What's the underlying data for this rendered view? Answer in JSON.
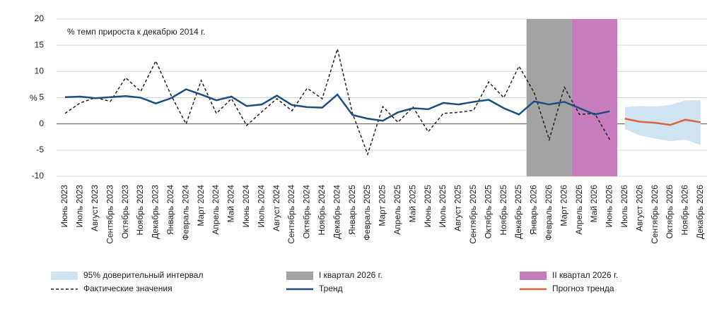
{
  "chart_data": {
    "type": "line",
    "title": "% темп прироста к декабрю 2014 г.",
    "y_label": "%",
    "categories": [
      "Июнь 2023",
      "Июль 2023",
      "Август 2023",
      "Сентябрь 2023",
      "Октябрь 2023",
      "Ноябрь 2023",
      "Декабрь 2023",
      "Январь 2024",
      "Февраль 2024",
      "Март 2024",
      "Апрель 2024",
      "Май 2024",
      "Июнь 2024",
      "Июль 2024",
      "Август 2024",
      "Сентябрь 2024",
      "Октябрь 2024",
      "Ноябрь 2024",
      "Декабрь 2024",
      "Январь 2025",
      "Февраль 2025",
      "Март 2025",
      "Апрель 2025",
      "Май 2025",
      "Июнь 2025",
      "Июль 2025",
      "Август 2025",
      "Сентябрь 2025",
      "Октябрь 2025",
      "Ноябрь 2025",
      "Декабрь 2025",
      "Январь 2026",
      "Февраль 2026",
      "Март 2026",
      "Апрель 2026",
      "Май 2026",
      "Июнь 2026",
      "Июль 2026",
      "Август 2026",
      "Сентябрь 2026",
      "Октябрь 2026",
      "Ноябрь 2026",
      "Декабрь 2026"
    ],
    "series": [
      {
        "name": "Фактические значения",
        "color": "#222222",
        "dashed": true,
        "values": [
          2,
          4,
          5,
          4.3,
          8.8,
          6.2,
          12,
          5.5,
          0,
          8.3,
          2,
          4.8,
          -0.3,
          2.3,
          4.8,
          2.5,
          6.8,
          4.8,
          14.3,
          2,
          -5.8,
          3.3,
          0.3,
          3.2,
          -1.5,
          2,
          2.2,
          2.6,
          8,
          5,
          11,
          6,
          -3,
          7,
          1.8,
          2,
          -3,
          null,
          null,
          null,
          null,
          null,
          null
        ]
      },
      {
        "name": "Тренд",
        "color": "#1b4f82",
        "dashed": false,
        "values": [
          5.1,
          5.2,
          4.9,
          5.1,
          5.3,
          5,
          3.9,
          4.9,
          6.6,
          5.6,
          4.5,
          5.2,
          3.4,
          3.7,
          5.4,
          3.6,
          3.2,
          3.1,
          5.6,
          1.7,
          1,
          0.6,
          2.2,
          3,
          2.8,
          4,
          3.7,
          4.2,
          4.6,
          3,
          1.8,
          4.3,
          3.7,
          4.2,
          3,
          1.8,
          2.4,
          null,
          null,
          null,
          null,
          null,
          null
        ]
      },
      {
        "name": "Прогноз тренда",
        "color": "#e0623a",
        "dashed": false,
        "values": [
          null,
          null,
          null,
          null,
          null,
          null,
          null,
          null,
          null,
          null,
          null,
          null,
          null,
          null,
          null,
          null,
          null,
          null,
          null,
          null,
          null,
          null,
          null,
          null,
          null,
          null,
          null,
          null,
          null,
          null,
          null,
          null,
          null,
          null,
          null,
          null,
          null,
          1.0,
          0.4,
          0.2,
          -0.2,
          0.8,
          0.3
        ]
      }
    ],
    "band": {
      "name": "95% доверительный интервал",
      "color": "#cfe3f1",
      "upper": [
        null,
        null,
        null,
        null,
        null,
        null,
        null,
        null,
        null,
        null,
        null,
        null,
        null,
        null,
        null,
        null,
        null,
        null,
        null,
        null,
        null,
        null,
        null,
        null,
        null,
        null,
        null,
        null,
        null,
        null,
        null,
        null,
        null,
        null,
        null,
        null,
        null,
        3.2,
        3.4,
        3.3,
        3.6,
        4.5,
        4.5
      ],
      "lower": [
        null,
        null,
        null,
        null,
        null,
        null,
        null,
        null,
        null,
        null,
        null,
        null,
        null,
        null,
        null,
        null,
        null,
        null,
        null,
        null,
        null,
        null,
        null,
        null,
        null,
        null,
        null,
        null,
        null,
        null,
        null,
        null,
        null,
        null,
        null,
        null,
        null,
        -1,
        -2.2,
        -2.8,
        -3.3,
        -3,
        -4
      ]
    },
    "shaded": [
      {
        "name": "I квартал 2026 г.",
        "color": "#a3a3a3",
        "start": "Январь 2026",
        "end": "Март 2026"
      },
      {
        "name": "II квартал 2026 г.",
        "color": "#c77dbb",
        "start": "Апрель 2026",
        "end": "Июнь 2026"
      }
    ],
    "ylim": [
      -10,
      20
    ],
    "yticks": [
      -10,
      -5,
      0,
      5,
      10,
      15,
      20
    ],
    "grid": true
  }
}
